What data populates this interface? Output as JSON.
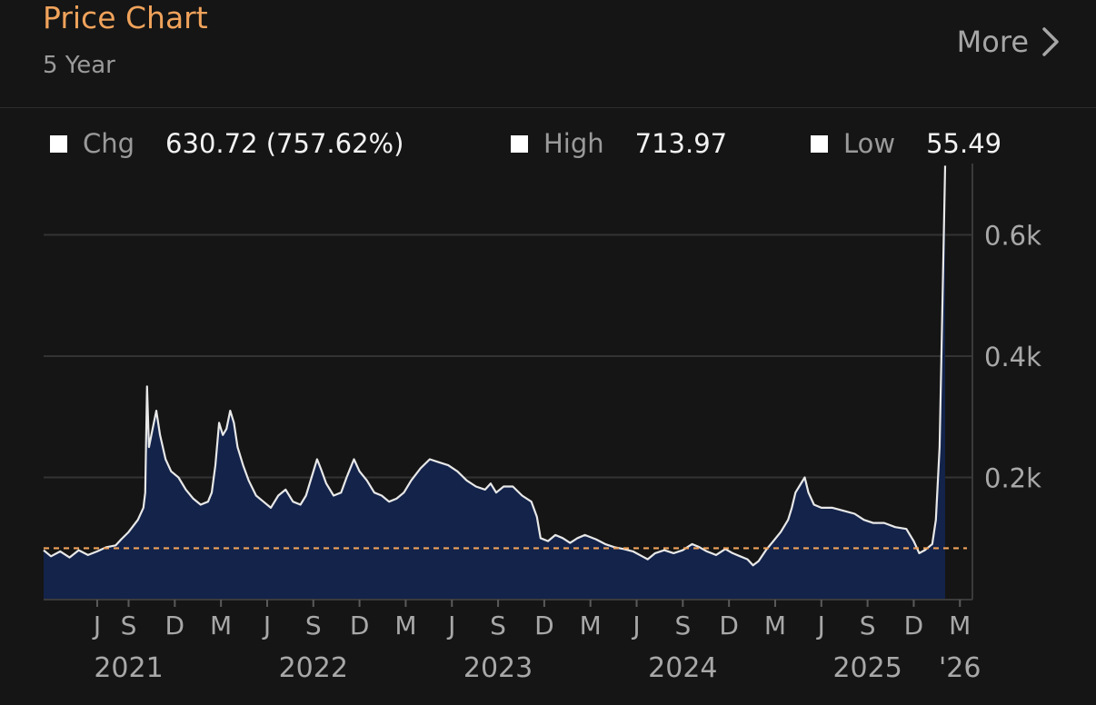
{
  "header": {
    "title": "Price Chart",
    "subtitle": "5 Year",
    "more_label": "More"
  },
  "stats": [
    {
      "label": "Chg",
      "value": "630.72 (757.62%)"
    },
    {
      "label": "High",
      "value": "713.97"
    },
    {
      "label": "Low",
      "value": "55.49"
    }
  ],
  "icons": {
    "more": "chevron-right-icon",
    "stat_marker": "square-icon"
  },
  "colors": {
    "title": "#f0a35b",
    "line": "#e8e8e8",
    "area": "#13234a",
    "baseline": "#f0a35b",
    "background": "#151515",
    "grid": "#333333"
  },
  "chart_data": {
    "type": "area",
    "title": "Price Chart",
    "subtitle": "5 Year",
    "xlabel": "",
    "ylabel": "",
    "ylim": [
      0,
      700
    ],
    "y_ticks": [
      {
        "label": "0.2k",
        "value": 200
      },
      {
        "label": "0.4k",
        "value": 400
      },
      {
        "label": "0.6k",
        "value": 600
      }
    ],
    "x_month_ticks": [
      {
        "label": "J",
        "t": 2021.5
      },
      {
        "label": "S",
        "t": 2021.67
      },
      {
        "label": "D",
        "t": 2021.92
      },
      {
        "label": "M",
        "t": 2022.17
      },
      {
        "label": "J",
        "t": 2022.42
      },
      {
        "label": "S",
        "t": 2022.67
      },
      {
        "label": "D",
        "t": 2022.92
      },
      {
        "label": "M",
        "t": 2023.17
      },
      {
        "label": "J",
        "t": 2023.42
      },
      {
        "label": "S",
        "t": 2023.67
      },
      {
        "label": "D",
        "t": 2023.92
      },
      {
        "label": "M",
        "t": 2024.17
      },
      {
        "label": "J",
        "t": 2024.42
      },
      {
        "label": "S",
        "t": 2024.67
      },
      {
        "label": "D",
        "t": 2024.92
      },
      {
        "label": "M",
        "t": 2025.17
      },
      {
        "label": "J",
        "t": 2025.42
      },
      {
        "label": "S",
        "t": 2025.67
      },
      {
        "label": "D",
        "t": 2025.92
      },
      {
        "label": "M",
        "t": 2026.17
      }
    ],
    "x_year_labels": [
      {
        "label": "2021",
        "t": 2021.67
      },
      {
        "label": "2022",
        "t": 2022.67
      },
      {
        "label": "2023",
        "t": 2023.67
      },
      {
        "label": "2024",
        "t": 2024.67
      },
      {
        "label": "2025",
        "t": 2025.67
      },
      {
        "label": "'26",
        "t": 2026.17
      }
    ],
    "baseline_value": 83.25,
    "grid": true,
    "series": [
      {
        "points": [
          [
            2021.21,
            80
          ],
          [
            2021.25,
            70
          ],
          [
            2021.3,
            78
          ],
          [
            2021.35,
            68
          ],
          [
            2021.4,
            80
          ],
          [
            2021.45,
            72
          ],
          [
            2021.5,
            78
          ],
          [
            2021.55,
            85
          ],
          [
            2021.6,
            88
          ],
          [
            2021.63,
            98
          ],
          [
            2021.67,
            110
          ],
          [
            2021.72,
            130
          ],
          [
            2021.75,
            150
          ],
          [
            2021.76,
            175
          ],
          [
            2021.77,
            350
          ],
          [
            2021.78,
            250
          ],
          [
            2021.8,
            280
          ],
          [
            2021.82,
            310
          ],
          [
            2021.84,
            270
          ],
          [
            2021.87,
            230
          ],
          [
            2021.9,
            210
          ],
          [
            2021.94,
            200
          ],
          [
            2021.98,
            180
          ],
          [
            2022.02,
            165
          ],
          [
            2022.06,
            155
          ],
          [
            2022.1,
            160
          ],
          [
            2022.12,
            175
          ],
          [
            2022.14,
            220
          ],
          [
            2022.16,
            290
          ],
          [
            2022.18,
            270
          ],
          [
            2022.2,
            280
          ],
          [
            2022.22,
            310
          ],
          [
            2022.24,
            290
          ],
          [
            2022.26,
            250
          ],
          [
            2022.29,
            220
          ],
          [
            2022.32,
            195
          ],
          [
            2022.36,
            170
          ],
          [
            2022.4,
            160
          ],
          [
            2022.44,
            150
          ],
          [
            2022.48,
            170
          ],
          [
            2022.52,
            180
          ],
          [
            2022.56,
            160
          ],
          [
            2022.6,
            155
          ],
          [
            2022.63,
            170
          ],
          [
            2022.66,
            200
          ],
          [
            2022.69,
            230
          ],
          [
            2022.71,
            215
          ],
          [
            2022.74,
            190
          ],
          [
            2022.78,
            170
          ],
          [
            2022.82,
            175
          ],
          [
            2022.85,
            200
          ],
          [
            2022.89,
            230
          ],
          [
            2022.92,
            210
          ],
          [
            2022.96,
            195
          ],
          [
            2023.0,
            175
          ],
          [
            2023.04,
            170
          ],
          [
            2023.08,
            160
          ],
          [
            2023.12,
            165
          ],
          [
            2023.16,
            175
          ],
          [
            2023.2,
            195
          ],
          [
            2023.25,
            215
          ],
          [
            2023.3,
            230
          ],
          [
            2023.35,
            225
          ],
          [
            2023.4,
            220
          ],
          [
            2023.45,
            210
          ],
          [
            2023.5,
            195
          ],
          [
            2023.55,
            185
          ],
          [
            2023.6,
            180
          ],
          [
            2023.63,
            190
          ],
          [
            2023.66,
            175
          ],
          [
            2023.7,
            185
          ],
          [
            2023.75,
            185
          ],
          [
            2023.8,
            170
          ],
          [
            2023.85,
            160
          ],
          [
            2023.88,
            135
          ],
          [
            2023.9,
            100
          ],
          [
            2023.94,
            95
          ],
          [
            2023.98,
            105
          ],
          [
            2024.02,
            100
          ],
          [
            2024.06,
            92
          ],
          [
            2024.1,
            100
          ],
          [
            2024.14,
            105
          ],
          [
            2024.2,
            98
          ],
          [
            2024.25,
            90
          ],
          [
            2024.3,
            85
          ],
          [
            2024.35,
            82
          ],
          [
            2024.4,
            78
          ],
          [
            2024.45,
            70
          ],
          [
            2024.48,
            65
          ],
          [
            2024.52,
            75
          ],
          [
            2024.57,
            80
          ],
          [
            2024.62,
            75
          ],
          [
            2024.67,
            80
          ],
          [
            2024.72,
            90
          ],
          [
            2024.76,
            85
          ],
          [
            2024.8,
            78
          ],
          [
            2024.85,
            72
          ],
          [
            2024.9,
            82
          ],
          [
            2024.94,
            75
          ],
          [
            2024.98,
            70
          ],
          [
            2025.02,
            65
          ],
          [
            2025.05,
            55
          ],
          [
            2025.08,
            62
          ],
          [
            2025.12,
            80
          ],
          [
            2025.16,
            95
          ],
          [
            2025.2,
            110
          ],
          [
            2025.24,
            130
          ],
          [
            2025.26,
            150
          ],
          [
            2025.28,
            175
          ],
          [
            2025.3,
            185
          ],
          [
            2025.33,
            200
          ],
          [
            2025.35,
            175
          ],
          [
            2025.38,
            155
          ],
          [
            2025.42,
            150
          ],
          [
            2025.48,
            150
          ],
          [
            2025.54,
            145
          ],
          [
            2025.6,
            140
          ],
          [
            2025.65,
            130
          ],
          [
            2025.7,
            125
          ],
          [
            2025.76,
            125
          ],
          [
            2025.82,
            118
          ],
          [
            2025.88,
            115
          ],
          [
            2025.92,
            95
          ],
          [
            2025.95,
            75
          ],
          [
            2025.98,
            80
          ],
          [
            2026.0,
            85
          ],
          [
            2026.02,
            90
          ],
          [
            2026.04,
            130
          ],
          [
            2026.06,
            250
          ],
          [
            2026.07,
            400
          ],
          [
            2026.08,
            560
          ],
          [
            2026.09,
            713.97
          ]
        ]
      }
    ]
  }
}
